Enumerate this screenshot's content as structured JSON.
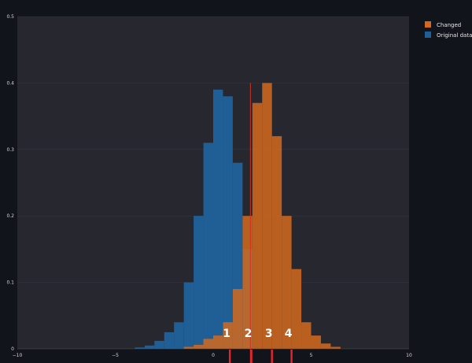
{
  "chart_data": {
    "type": "bar",
    "title": "",
    "xlabel": "",
    "ylabel": "",
    "xlim": [
      -10,
      10
    ],
    "ylim": [
      0,
      0.5
    ],
    "grid": true,
    "legend_position": "top-right",
    "bin_width": 0.5,
    "x_ticks": [
      -10,
      -5,
      0,
      5,
      10
    ],
    "x_tick_labels": [
      "−10",
      "−5",
      "0",
      "5",
      "10"
    ],
    "y_ticks": [
      0,
      0.1,
      0.2,
      0.3,
      0.4,
      0.5
    ],
    "y_tick_labels": [
      "0",
      "0.1",
      "0.2",
      "0.3",
      "0.4",
      "0.5"
    ],
    "series": [
      {
        "name": "Original data",
        "color": "#1f5f96",
        "opacity": 1,
        "bin_starts": [
          -4,
          -3.5,
          -3,
          -2.5,
          -2,
          -1.5,
          -1,
          -0.5,
          0,
          0.5,
          1,
          1.5
        ],
        "values": [
          0.002,
          0.005,
          0.012,
          0.025,
          0.04,
          0.1,
          0.2,
          0.31,
          0.39,
          0.38,
          0.28,
          0.15
        ]
      },
      {
        "name": "Changed",
        "color": "#d2691e",
        "opacity": 0.86,
        "bin_starts": [
          -1.5,
          -1,
          -0.5,
          0,
          0.5,
          1,
          1.5,
          2,
          2.5,
          3,
          3.5,
          4,
          4.5,
          5,
          5.5,
          6
        ],
        "values": [
          0.003,
          0.006,
          0.015,
          0.02,
          0.04,
          0.09,
          0.2,
          0.37,
          0.4,
          0.32,
          0.2,
          0.12,
          0.04,
          0.02,
          0.008,
          0.003
        ]
      }
    ],
    "vertical_line": {
      "x": 1.9,
      "color": "#d7301f"
    },
    "markers": [
      {
        "label": "1",
        "x": 0.85
      },
      {
        "label": "2",
        "x": 1.95
      },
      {
        "label": "3",
        "x": 3.0
      },
      {
        "label": "4",
        "x": 4.0
      }
    ],
    "marker_color": "#e8252b"
  }
}
